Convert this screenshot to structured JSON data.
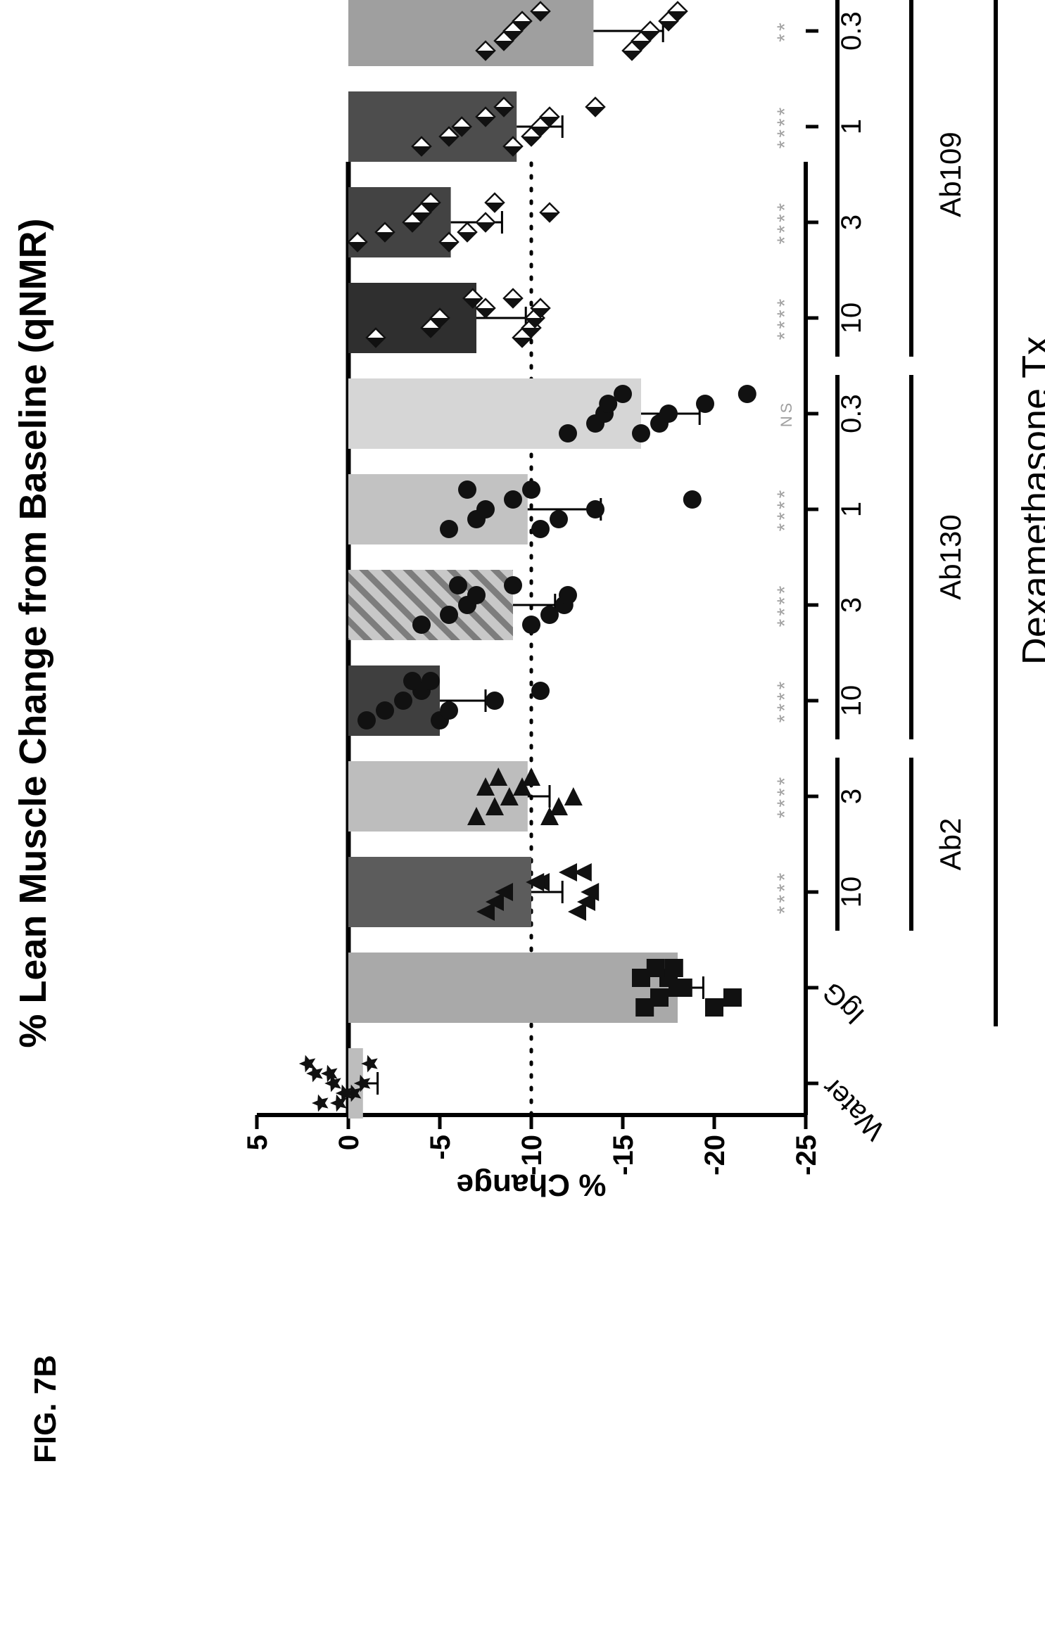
{
  "figure_label": "FIG. 7B",
  "chart_data": {
    "type": "bar",
    "title": "% Lean Muscle Change from Baseline (qNMR)",
    "ylabel": "% Change",
    "ylim": [
      -25,
      5
    ],
    "yticks": [
      "5",
      "0",
      "-5",
      "-10",
      "-15",
      "-20",
      "-25"
    ],
    "reference_line": -10,
    "categories": [
      "Water",
      "IgG",
      "10",
      "3",
      "10",
      "3",
      "1",
      "0.3",
      "10",
      "3",
      "1",
      "0.3"
    ],
    "values": [
      -0.8,
      -18.0,
      -10.0,
      -9.8,
      -5.0,
      -9.0,
      -9.8,
      -16.0,
      -7.0,
      -5.6,
      -9.2,
      -13.4
    ],
    "errors": [
      0.8,
      1.4,
      1.7,
      1.2,
      2.5,
      2.3,
      4.0,
      3.2,
      2.7,
      2.8,
      2.5,
      3.8
    ],
    "significance": [
      "",
      "",
      "****",
      "****",
      "****",
      "****",
      "****",
      "NS",
      "****",
      "****",
      "****",
      "**"
    ],
    "groups": [
      {
        "label": "Ab2",
        "start": 2,
        "end": 3
      },
      {
        "label": "Ab130",
        "start": 4,
        "end": 7
      },
      {
        "label": "Ab109",
        "start": 8,
        "end": 11
      }
    ],
    "treatment_label": "Dexamethasone Tx",
    "treatment_span": {
      "start": 1,
      "end": 11
    },
    "points": [
      [
        0.5,
        -0.3,
        0.8,
        1.0,
        -1.2,
        1.5,
        0.2,
        -0.8,
        1.8,
        2.2
      ],
      [
        -16.2,
        -17.0,
        -18.3,
        -17.5,
        -16.8,
        -20.0,
        -21.0,
        -18.0,
        -16.0,
        -17.8
      ],
      [
        -7.5,
        -8.0,
        -8.5,
        -10.5,
        -12.0,
        -12.5,
        -13.0,
        -13.2,
        -10.2,
        -12.8
      ],
      [
        -7.0,
        -8.0,
        -8.8,
        -9.5,
        -10.0,
        -11.0,
        -11.5,
        -12.3,
        -7.5,
        -8.2
      ],
      [
        -1.0,
        -2.0,
        -3.0,
        -4.0,
        -4.5,
        -5.0,
        -5.5,
        -8.0,
        -10.5,
        -3.5
      ],
      [
        -4.0,
        -5.5,
        -6.5,
        -7.0,
        -9.0,
        -10.0,
        -11.0,
        -11.8,
        -12.0,
        -6.0
      ],
      [
        -5.5,
        -7.0,
        -7.5,
        -9.0,
        -10.0,
        -10.5,
        -11.5,
        -13.5,
        -18.8,
        -6.5
      ],
      [
        -12.0,
        -13.5,
        -14.0,
        -14.2,
        -15.0,
        -16.0,
        -17.0,
        -17.5,
        -19.5,
        -21.8
      ],
      [
        -1.5,
        -4.5,
        -5.0,
        -7.5,
        -9.0,
        -9.5,
        -10.0,
        -10.2,
        -10.5,
        -6.8
      ],
      [
        -0.5,
        -2.0,
        -3.5,
        -4.0,
        -4.5,
        -5.5,
        -6.5,
        -7.5,
        -11.0,
        -8.0
      ],
      [
        -4.0,
        -5.5,
        -6.2,
        -7.5,
        -8.5,
        -9.0,
        -10.0,
        -10.5,
        -11.0,
        -13.5
      ],
      [
        -7.5,
        -8.5,
        -9.0,
        -9.5,
        -10.5,
        -15.5,
        -16.0,
        -16.5,
        -17.5,
        -18.0
      ]
    ],
    "colors": {
      "bars": [
        "#bdbdbd",
        "#a9a9a9",
        "#5c5c5c",
        "#bdbdbd",
        "#3f3f3f",
        "#9a9a9a",
        "#c2c2c2",
        "#d6d6d6",
        "#2f2f2f",
        "#434343",
        "#4d4d4d",
        "#9f9f9f"
      ],
      "significance": "#a0a0a0",
      "axis": "#000000"
    },
    "markers": [
      "star",
      "square",
      "triangle",
      "triangle-right",
      "circle",
      "circle",
      "circle",
      "circle",
      "diamond",
      "diamond",
      "diamond",
      "diamond"
    ],
    "hatched_bars": [
      5
    ],
    "orientation": "rotated-90-ccw"
  }
}
